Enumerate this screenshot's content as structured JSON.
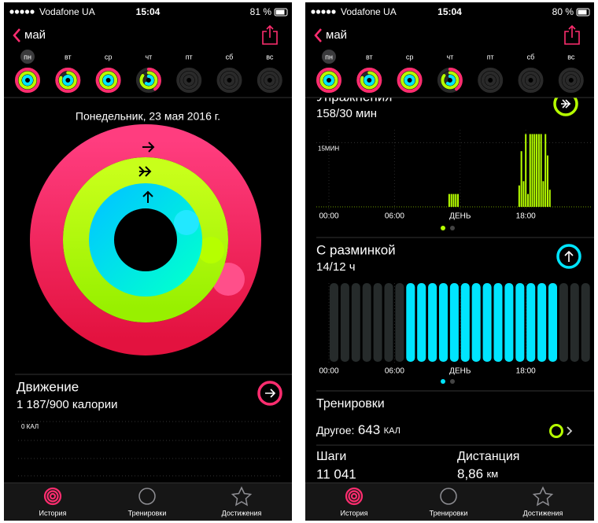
{
  "screens": [
    {
      "status": {
        "carrier": "Vodafone UA",
        "time": "15:04",
        "battery": "81 %"
      },
      "nav": {
        "back": "май"
      },
      "days": [
        "пн",
        "вт",
        "ср",
        "чт",
        "пт",
        "сб",
        "вс"
      ],
      "date": "Понедельник, 23 мая 2016 г.",
      "move": {
        "title": "Движение",
        "value": "1 187/900 калории",
        "axis_label": "0 КАЛ"
      },
      "tabs": [
        "История",
        "Тренировки",
        "Достижения"
      ]
    },
    {
      "status": {
        "carrier": "Vodafone UA",
        "time": "15:04",
        "battery": "80 %"
      },
      "nav": {
        "back": "май"
      },
      "days": [
        "пн",
        "вт",
        "ср",
        "чт",
        "пт",
        "сб",
        "вс"
      ],
      "exercise": {
        "title": "Упражнения",
        "value": "158/30 мин",
        "chart": {
          "type": "bar",
          "color": "#b6ff00",
          "x": [
            11.0,
            11.2,
            11.4,
            11.6,
            11.8,
            17.4,
            17.6,
            17.8,
            18.0,
            18.2,
            18.4,
            18.6,
            18.8,
            19.0,
            19.2,
            19.4,
            19.6,
            19.8,
            20.0,
            20.2
          ],
          "values": [
            3,
            3,
            3,
            3,
            3,
            5,
            13,
            6,
            17,
            3,
            17,
            17,
            17,
            17,
            17,
            17,
            6,
            17,
            12,
            4
          ],
          "xlim": [
            0,
            24
          ],
          "ylim": [
            0,
            18
          ],
          "yticks": [
            {
              "value": 15,
              "label": "15МИН"
            }
          ],
          "xticks": [
            {
              "value": 0,
              "label": "00:00"
            },
            {
              "value": 6,
              "label": "06:00"
            },
            {
              "value": 12,
              "label": "ДЕНЬ"
            },
            {
              "value": 18,
              "label": "18:00"
            }
          ]
        }
      },
      "stand": {
        "title": "С разминкой",
        "value": "14/12 ч",
        "chart": {
          "type": "bar",
          "color": "#00e5ff",
          "values": [
            0,
            0,
            0,
            0,
            0,
            0,
            0,
            1,
            1,
            1,
            1,
            1,
            1,
            1,
            1,
            1,
            1,
            1,
            1,
            1,
            1,
            0,
            0,
            0
          ],
          "xlim": [
            0,
            24
          ],
          "ylim": [
            0,
            1
          ],
          "xticks": [
            {
              "value": 0,
              "label": "00:00"
            },
            {
              "value": 6,
              "label": "06:00"
            },
            {
              "value": 12,
              "label": "ДЕНЬ"
            },
            {
              "value": 18,
              "label": "18:00"
            }
          ]
        }
      },
      "workouts": {
        "title": "Тренировки",
        "items": [
          {
            "label": "Другое:",
            "value": "643",
            "unit": "КАЛ"
          }
        ]
      },
      "steps": {
        "label": "Шаги",
        "value": "11 041"
      },
      "distance": {
        "label": "Дистанция",
        "value": "8,86",
        "unit": "км"
      },
      "tabs": [
        "История",
        "Тренировки",
        "Достижения"
      ]
    }
  ]
}
